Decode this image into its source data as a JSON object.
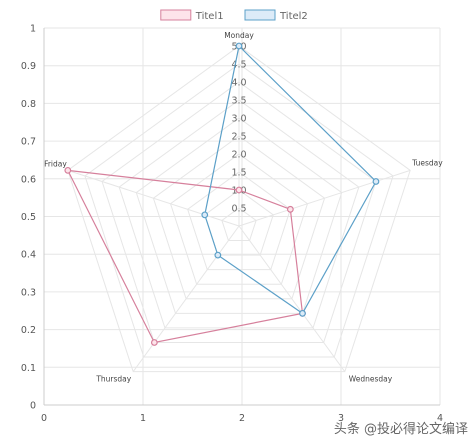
{
  "chart_data": {
    "type": "radar",
    "categories": [
      "Monday",
      "Tuesday",
      "Wednesday",
      "Thursday",
      "Friday"
    ],
    "series": [
      {
        "name": "Titel1",
        "values": [
          1.0,
          1.5,
          3.0,
          4.0,
          5.0
        ]
      },
      {
        "name": "Titel2",
        "values": [
          5.0,
          4.0,
          3.0,
          1.0,
          1.0
        ]
      }
    ],
    "radial_range": [
      0,
      5
    ],
    "radial_ticks": [
      "0.5",
      "1.0",
      "1.5",
      "2.0",
      "2.5",
      "3.0",
      "3.5",
      "4.0",
      "4.5",
      "5.0"
    ],
    "x_ticks": [
      "0",
      "1",
      "2",
      "3",
      "4"
    ],
    "y_ticks": [
      "0",
      "0.1",
      "0.2",
      "0.3",
      "0.4",
      "0.5",
      "0.6",
      "0.7",
      "0.8",
      "0.9",
      "1"
    ],
    "legend_placement": "top",
    "grid": true
  },
  "colors": {
    "series": [
      "#d6809c",
      "#5ca0c8"
    ],
    "series_fill": [
      "#fde4ea",
      "#dcebf8"
    ],
    "grid": "#e6e6e6",
    "axis": "#dddddd"
  },
  "watermark": "头条 @投必得论文编译"
}
